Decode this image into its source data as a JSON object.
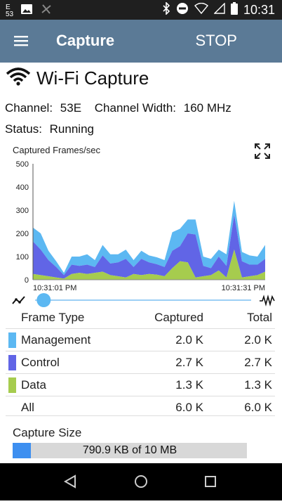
{
  "status_bar": {
    "notification_count": "53",
    "time": "10:31",
    "icons": [
      "notification-icon",
      "image-icon",
      "fan-icon",
      "bluetooth-icon",
      "do-not-disturb-icon",
      "wifi-icon",
      "cellular-icon",
      "battery-icon"
    ]
  },
  "app_bar": {
    "title": "Capture",
    "action": "STOP"
  },
  "header": {
    "title": "Wi-Fi Capture",
    "icon": "wifi-icon"
  },
  "info": {
    "channel_label": "Channel:",
    "channel_value": "53E",
    "width_label": "Channel Width:",
    "width_value": "160 MHz",
    "status_label": "Status:",
    "status_value": "Running"
  },
  "chart_data": {
    "type": "area",
    "title": "Captured Frames/sec",
    "ylim": [
      0,
      500
    ],
    "yticks": [
      "500",
      "400",
      "300",
      "200",
      "100",
      "0"
    ],
    "x_start_label": "10:31:01 PM",
    "x_end_label": "10:31:31 PM",
    "grid": false,
    "stacked": true,
    "series": [
      {
        "name": "Data",
        "color": "#a6cc4e",
        "values": [
          25,
          20,
          15,
          10,
          5,
          25,
          30,
          25,
          30,
          35,
          20,
          15,
          10,
          25,
          20,
          25,
          22,
          15,
          50,
          80,
          75,
          10,
          15,
          20,
          40,
          10,
          130,
          10,
          15,
          20,
          35
        ]
      },
      {
        "name": "Control",
        "color": "#6165e6",
        "values": [
          140,
          110,
          70,
          45,
          15,
          40,
          30,
          40,
          25,
          70,
          50,
          60,
          80,
          30,
          70,
          50,
          45,
          40,
          75,
          65,
          125,
          185,
          45,
          30,
          60,
          50,
          150,
          70,
          50,
          45,
          55
        ]
      },
      {
        "name": "Management",
        "color": "#5cb8f2",
        "values": [
          60,
          70,
          40,
          25,
          10,
          35,
          40,
          45,
          30,
          45,
          40,
          35,
          40,
          30,
          35,
          30,
          30,
          30,
          80,
          75,
          60,
          65,
          40,
          40,
          30,
          50,
          60,
          40,
          40,
          35,
          60
        ]
      }
    ]
  },
  "slider": {
    "position": 0.04
  },
  "table": {
    "headers": [
      "Frame Type",
      "Captured",
      "Total"
    ],
    "rows": [
      {
        "name": "Management",
        "captured": "2.0 K",
        "total": "2.0 K",
        "color": "#5cb8f2"
      },
      {
        "name": "Control",
        "captured": "2.7 K",
        "total": "2.7 K",
        "color": "#6165e6"
      },
      {
        "name": "Data",
        "captured": "1.3 K",
        "total": "1.3 K",
        "color": "#a6cc4e"
      },
      {
        "name": "All",
        "captured": "6.0 K",
        "total": "6.0 K",
        "color": ""
      }
    ]
  },
  "capture_size": {
    "label": "Capture Size",
    "text": "790.9 KB of 10 MB",
    "fraction": 0.079
  },
  "colors": {
    "app_bar": "#5b7a96",
    "status_bar": "#1f1f1f",
    "accent": "#3d8ff0"
  }
}
